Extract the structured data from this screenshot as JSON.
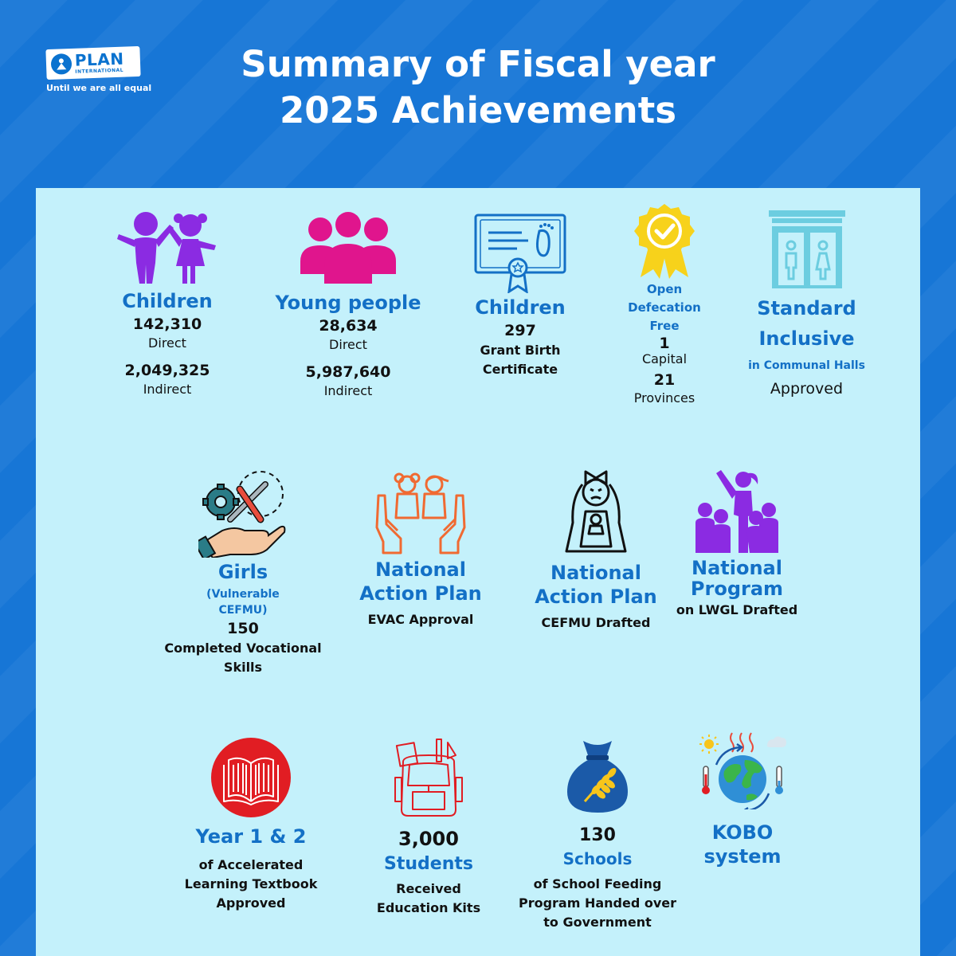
{
  "brand": {
    "logo_word": "PLAN",
    "logo_sub": "INTERNATIONAL",
    "tagline": "Until we are all equal"
  },
  "header": {
    "title_line1": "Summary of Fiscal year",
    "title_line2": "2025 Achievements"
  },
  "row1": {
    "children": {
      "label": "Children",
      "direct_value": "142,310",
      "direct_label": "Direct",
      "indirect_value": "2,049,325",
      "indirect_label": "Indirect"
    },
    "young_people": {
      "label": "Young people",
      "direct_value": "28,634",
      "direct_label": "Direct",
      "indirect_value": "5,987,640",
      "indirect_label": "Indirect"
    },
    "birth_cert": {
      "label": "Children",
      "value": "297",
      "desc1": "Grant Birth",
      "desc2": "Certificate"
    },
    "odf": {
      "label1": "Open",
      "label2": "Defecation",
      "label3": "Free",
      "capital_value": "1",
      "capital_label": "Capital",
      "provinces_value": "21",
      "provinces_label": "Provinces"
    },
    "halls": {
      "label1": "Standard",
      "label2": "Inclusive",
      "sub": "in Communal Halls",
      "status": "Approved"
    }
  },
  "row2": {
    "girls": {
      "label": "Girls",
      "sub1": "(Vulnerable",
      "sub2": "CEFMU)",
      "value": "150",
      "desc1": "Completed Vocational",
      "desc2": "Skills"
    },
    "nap_evac": {
      "label1": "National",
      "label2": "Action Plan",
      "desc": "EVAC Approval"
    },
    "nap_cefmu": {
      "label1": "National",
      "label2": "Action Plan",
      "desc": "CEFMU Drafted"
    },
    "np_lwgl": {
      "label1": "National",
      "label2": "Program",
      "desc": "on LWGL Drafted"
    }
  },
  "row3": {
    "textbook": {
      "label": "Year 1 & 2",
      "desc1": "of Accelerated",
      "desc2": "Learning Textbook",
      "desc3": "Approved"
    },
    "students": {
      "value": "3,000",
      "label": "Students",
      "desc1": "Received",
      "desc2": "Education Kits"
    },
    "schools": {
      "value": "130",
      "label": "Schools",
      "desc1": "of School Feeding",
      "desc2": "Program Handed over",
      "desc3": "to Government"
    },
    "kobo": {
      "label1": "KOBO",
      "label2": "system"
    }
  },
  "colors": {
    "background": "#1776d6",
    "panel": "#c4f1fb",
    "label_blue": "#1370c6",
    "purple": "#8b2be2",
    "magenta": "#e0158d",
    "yellow": "#f7d21b",
    "red": "#e11d23",
    "orange": "#f06a32"
  }
}
